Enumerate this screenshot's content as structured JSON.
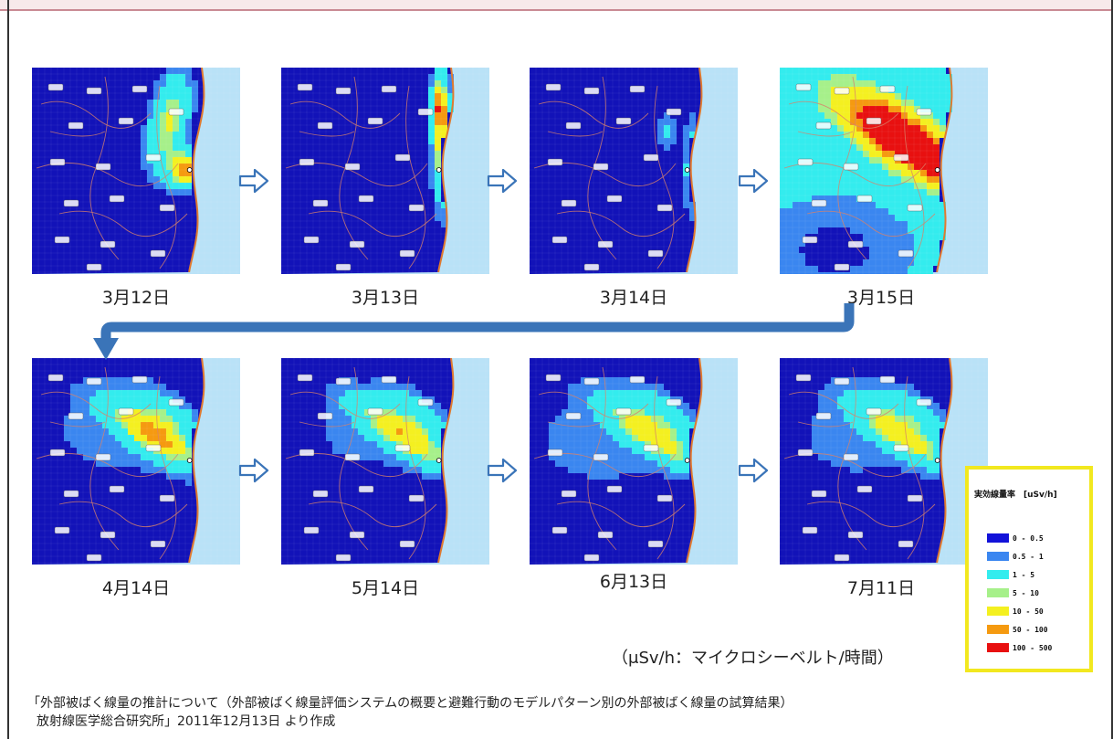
{
  "panels": [
    {
      "date": "3月12日"
    },
    {
      "date": "3月13日"
    },
    {
      "date": "3月14日"
    },
    {
      "date": "3月15日"
    },
    {
      "date": "4月14日"
    },
    {
      "date": "5月14日"
    },
    {
      "date": "6月13日"
    },
    {
      "date": "7月11日"
    }
  ],
  "legend": {
    "title": "実効線量率　[uSv/h]",
    "items": [
      {
        "label": "0 - 0.5",
        "color": "#1212d9"
      },
      {
        "label": "0.5 - 1",
        "color": "#3a86f0"
      },
      {
        "label": "1 - 5",
        "color": "#33ecee"
      },
      {
        "label": "5 - 10",
        "color": "#a6f08a"
      },
      {
        "label": "10 - 50",
        "color": "#f4f020"
      },
      {
        "label": "50 - 100",
        "color": "#f59a10"
      },
      {
        "label": "100 - 500",
        "color": "#e81010"
      }
    ]
  },
  "unit_note": "（μSv/h：マイクロシーベルト/時間）",
  "source": {
    "line1": "「外部被ばく線量の推計について（外部被ばく線量評価システムの概要と避難行動のモデルパターン別の外部被ばく線量の試算結果）",
    "line2": "放射線医学総合研究所」2011年12月13日 より作成"
  },
  "colors": {
    "sea": "#b9e2f7",
    "base": "#1212b8",
    "arrow_blue": "#3a74b8",
    "legend_border": "#f2e81f"
  }
}
